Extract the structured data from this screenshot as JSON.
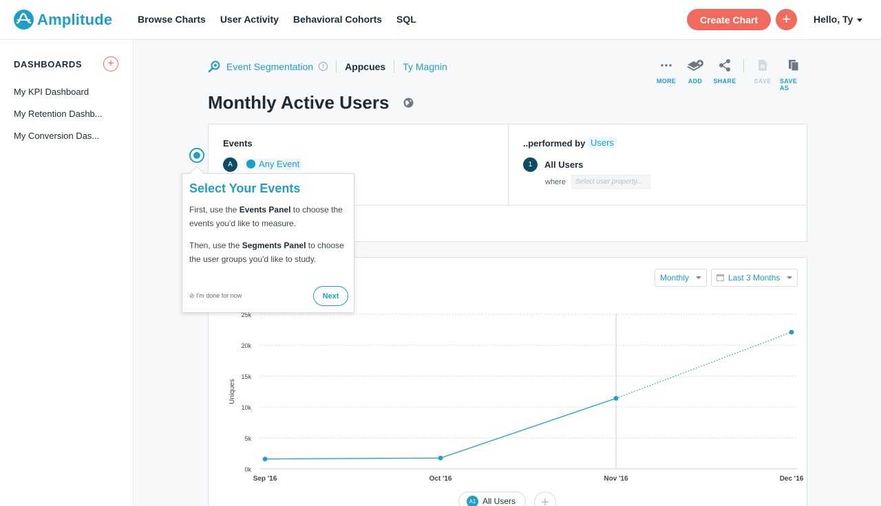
{
  "app": {
    "name": "Amplitude",
    "brand_color": "#1e9ec8",
    "accent_color": "#f06a5e"
  },
  "nav": {
    "links": [
      "Browse Charts",
      "User Activity",
      "Behavioral Cohorts",
      "SQL"
    ],
    "create_chart": "Create Chart",
    "plus": "+",
    "greeting": "Hello, Ty"
  },
  "sidebar": {
    "title": "DASHBOARDS",
    "add": "+",
    "items": [
      "My KPI Dashboard",
      "My Retention Dashb...",
      "My Conversion Das..."
    ]
  },
  "breadcrumb": {
    "chart_type": "Event Segmentation",
    "info": "i",
    "project": "Appcues",
    "owner": "Ty Magnin"
  },
  "toolbar": {
    "more": "MORE",
    "add": "ADD",
    "share": "SHARE",
    "save": "SAVE",
    "save_as": "SAVE AS"
  },
  "page": {
    "title": "Monthly Active Users"
  },
  "query": {
    "events_label": "Events",
    "event_badge": "A",
    "event_name": "Any Event",
    "performed_by_label": "..performed by",
    "performed_by_value": "Users",
    "segment_badge": "1",
    "segment_name": "All Users",
    "where_label": "where",
    "property_placeholder": "Select user property..."
  },
  "controls": {
    "interval": "Monthly",
    "range": "Last 3 Months"
  },
  "tooltip": {
    "title": "Select Your Events",
    "p1_a": "First, use the ",
    "p1_b": "Events Panel",
    "p1_c": " to choose the events you'd like to measure.",
    "p2_a": "Then, use the ",
    "p2_b": "Segments Panel",
    "p2_c": " to choose the user groups you'd like to study.",
    "done": "⊘ I'm done for now",
    "next": "Next"
  },
  "legend": {
    "badge": "A1",
    "label": "All Users",
    "add": "+"
  },
  "chart_data": {
    "type": "line",
    "x": [
      "Sep '16",
      "Oct '16",
      "Nov '16",
      "Dec '16"
    ],
    "series": [
      {
        "name": "All Users",
        "values": [
          1600,
          1750,
          11400,
          22100
        ],
        "color": "#1e9ec8",
        "incomplete_last": true
      }
    ],
    "ylabel": "Uniques",
    "y_ticks": [
      "0k",
      "5k",
      "10k",
      "15k",
      "20k",
      "25k"
    ],
    "ylim": [
      0,
      25000
    ],
    "grid": true,
    "highlight_x": "Nov '16"
  }
}
